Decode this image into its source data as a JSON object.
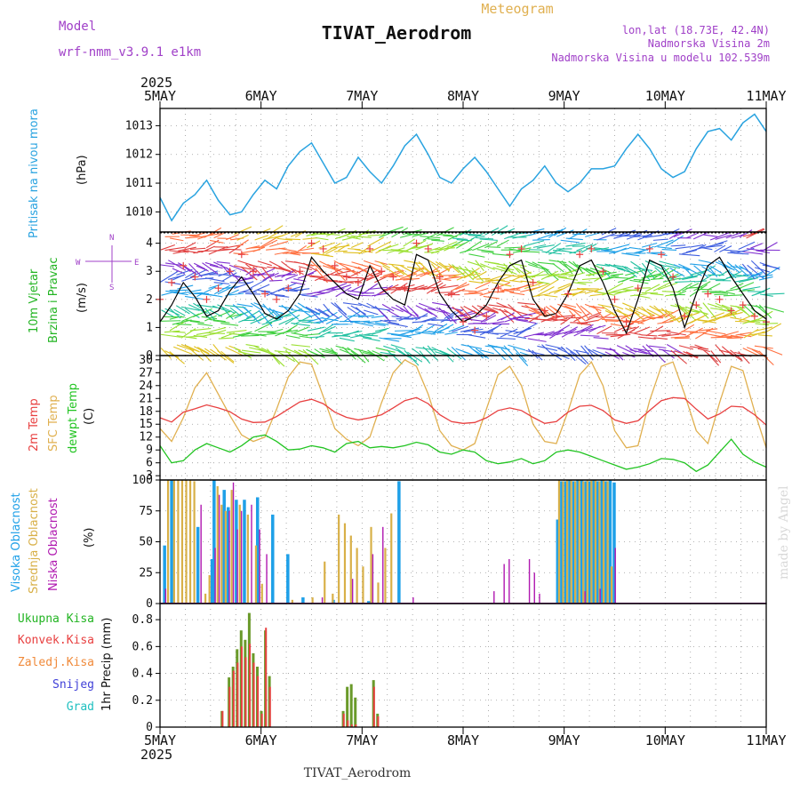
{
  "header": {
    "title": "TIVAT_Aerodrom",
    "subtitle": "Meteogram",
    "model_label": "Model",
    "model_name": "wrf-nmm_v3.9.1 e1km",
    "location": "lon,lat (18.73E, 42.4N)",
    "elevation": "Nadmorska Visina 2m",
    "model_elevation": "Nadmorska Visina u modelu 102.539m",
    "year": "2025",
    "credit": "made by Angel",
    "footer": "TIVAT_Aerodrom"
  },
  "colors": {
    "pressure": "#29a3e0",
    "temp2m": "#e84040",
    "sfc_temp": "#e0b050",
    "dewpt": "#22c422",
    "cloud_high": "#1ea0e8",
    "cloud_mid": "#d8b048",
    "cloud_low": "#b018b0",
    "precip_total": "#6a9a2a",
    "precip_conv": "#e84040",
    "wind_speed": "#000000",
    "gust": "#e84040",
    "violet_text": "#a040c8"
  },
  "chart_data": [
    {
      "type": "line",
      "title": "",
      "ylabel": "Pritisak na nivou mora",
      "unit": "(hPa)",
      "x_ticks": [
        "5MAY",
        "6MAY",
        "7MAY",
        "8MAY",
        "9MAY",
        "10MAY",
        "11MAY"
      ],
      "ylim": [
        1009.3,
        1013.6
      ],
      "y_ticks": [
        "1010",
        "1011",
        "1012",
        "1013"
      ],
      "series": [
        {
          "values": [
            1010.5,
            1009.7,
            1010.3,
            1010.6,
            1011.1,
            1010.4,
            1009.9,
            1010.0,
            1010.6,
            1011.1,
            1010.8,
            1011.6,
            1012.1,
            1012.4,
            1011.7,
            1011.0,
            1011.2,
            1011.9,
            1011.4,
            1011.0,
            1011.6,
            1012.3,
            1012.7,
            1012.0,
            1011.2,
            1011.0,
            1011.5,
            1011.9,
            1011.4,
            1010.8,
            1010.2,
            1010.8,
            1011.1,
            1011.6,
            1011.0,
            1010.7,
            1011.0,
            1011.5,
            1011.5,
            1011.6,
            1012.2,
            1012.7,
            1012.2,
            1011.5,
            1011.2,
            1011.4,
            1012.2,
            1012.8,
            1012.9,
            1012.5,
            1013.1,
            1013.4,
            1012.8
          ]
        }
      ]
    },
    {
      "type": "line",
      "title": "",
      "ylabel": "10m Vjetar Brzina i Pravac",
      "unit": "(m/s)",
      "ylim": [
        0,
        4.4
      ],
      "y_ticks": [
        "0",
        "1",
        "2",
        "3",
        "4"
      ],
      "compass": [
        "N",
        "E",
        "S",
        "W"
      ],
      "series": [
        {
          "values": [
            1.2,
            1.8,
            2.6,
            2.1,
            1.4,
            1.6,
            2.3,
            2.8,
            2.2,
            1.5,
            1.3,
            1.6,
            2.2,
            3.5,
            3.0,
            2.6,
            2.2,
            2.0,
            3.2,
            2.4,
            2.0,
            1.8,
            3.6,
            3.4,
            2.2,
            1.6,
            1.2,
            1.4,
            1.8,
            2.6,
            3.2,
            3.4,
            2.0,
            1.4,
            1.5,
            2.2,
            3.2,
            3.4,
            2.6,
            1.6,
            0.8,
            2.0,
            3.4,
            3.2,
            2.4,
            1.0,
            2.2,
            3.2,
            3.5,
            2.8,
            2.2,
            1.6,
            1.3
          ]
        },
        {
          "values": [
            2.0,
            2.6,
            3.2,
            2.8,
            2.0,
            2.4,
            3.0,
            3.6,
            3.0,
            2.2,
            2.0,
            2.4,
            3.0,
            4.0,
            3.8,
            3.2,
            2.8,
            2.6,
            3.8,
            3.0,
            2.8,
            2.4,
            4.0,
            3.8,
            2.8,
            2.2,
            1.2,
            0.9,
            1.4,
            2.4,
            3.6,
            3.8,
            2.6,
            1.6,
            1.4,
            2.2,
            3.6,
            3.8,
            3.0,
            2.0,
            1.2,
            2.4,
            3.8,
            3.6,
            2.8,
            1.4,
            1.8,
            2.2,
            2.0,
            1.6,
            1.8,
            1.4,
            1.2
          ]
        }
      ]
    },
    {
      "type": "line",
      "title": "",
      "ylabels": [
        "2m Temp",
        "SFC Temp",
        "dewpt Temp"
      ],
      "unit": "(C)",
      "ylim": [
        2,
        31
      ],
      "y_ticks": [
        "3",
        "6",
        "9",
        "12",
        "15",
        "18",
        "21",
        "24",
        "27",
        "30"
      ],
      "series": [
        {
          "values": [
            16.5,
            15.5,
            17.8,
            18.6,
            19.5,
            18.8,
            17.9,
            16.2,
            15.4,
            15.5,
            16.8,
            18.5,
            20.2,
            20.8,
            19.8,
            17.8,
            16.6,
            16.0,
            16.5,
            17.2,
            18.8,
            20.5,
            21.2,
            19.8,
            17.2,
            15.6,
            15.2,
            15.4,
            16.5,
            18.2,
            18.8,
            18.2,
            16.6,
            15.2,
            15.6,
            17.8,
            19.2,
            19.4,
            18.2,
            16.0,
            15.2,
            15.8,
            18.2,
            20.5,
            21.2,
            21.0,
            18.5,
            16.2,
            17.4,
            19.2,
            19.0,
            17.2,
            14.8
          ]
        },
        {
          "values": [
            14.0,
            11.0,
            16.5,
            23.5,
            27.0,
            22.0,
            17.0,
            12.5,
            11.0,
            12.0,
            18.5,
            26.0,
            29.5,
            29.0,
            21.5,
            14.0,
            11.5,
            10.0,
            12.0,
            20.0,
            27.0,
            30.0,
            28.5,
            22.0,
            13.5,
            10.0,
            9.0,
            10.5,
            18.5,
            26.5,
            28.5,
            24.0,
            15.0,
            11.0,
            10.5,
            18.0,
            26.5,
            29.5,
            24.0,
            13.5,
            9.5,
            10.0,
            20.5,
            28.5,
            29.5,
            22.0,
            13.5,
            10.5,
            20.0,
            28.5,
            27.5,
            18.0,
            9.5
          ]
        },
        {
          "values": [
            10.0,
            6.0,
            6.5,
            9.0,
            10.5,
            9.5,
            8.5,
            10.0,
            12.0,
            12.5,
            11.0,
            9.0,
            9.2,
            10.0,
            9.5,
            8.5,
            10.5,
            11.0,
            9.5,
            9.8,
            9.5,
            10.0,
            10.8,
            10.2,
            8.5,
            8.0,
            9.0,
            8.5,
            6.5,
            5.8,
            6.2,
            7.0,
            5.8,
            6.5,
            8.5,
            9.0,
            8.5,
            7.5,
            6.5,
            5.5,
            4.5,
            5.0,
            5.8,
            7.0,
            6.8,
            6.0,
            4.0,
            5.5,
            8.5,
            11.5,
            8.0,
            6.2,
            5.0
          ]
        }
      ]
    },
    {
      "type": "bar",
      "title": "",
      "ylabels": [
        "Visoka Oblacnost",
        "Srednja Oblacnost",
        "Niska Oblacnost"
      ],
      "unit": "(%)",
      "ylim": [
        0,
        100
      ],
      "y_ticks": [
        "0",
        "25",
        "50",
        "75",
        "100"
      ],
      "series": [
        {
          "t": [
            0.03,
            0.1,
            0.36,
            0.5,
            0.52,
            0.62,
            0.66,
            0.74,
            0.82,
            0.95,
            1.1,
            1.25,
            1.4,
            1.7,
            2.05,
            2.35,
            3.92,
            3.96,
            4.0,
            4.04,
            4.08,
            4.12,
            4.16,
            4.2,
            4.24,
            4.28,
            4.32,
            4.36,
            4.4,
            4.44,
            4.48
          ],
          "values": [
            47,
            100,
            62,
            36,
            100,
            92,
            78,
            84,
            84,
            86,
            72,
            40,
            5,
            3,
            2,
            99,
            68,
            99,
            99,
            100,
            99,
            100,
            100,
            99,
            99,
            100,
            99,
            100,
            99,
            100,
            98
          ]
        },
        {
          "t": [
            0.07,
            0.13,
            0.17,
            0.21,
            0.25,
            0.29,
            0.33,
            0.44,
            0.48,
            0.56,
            0.6,
            0.64,
            0.7,
            0.78,
            0.86,
            0.94,
            1.0,
            1.3,
            1.5,
            1.62,
            1.7,
            1.76,
            1.82,
            1.88,
            1.94,
            2.0,
            2.08,
            2.15,
            2.22,
            2.28,
            3.94,
            3.98,
            4.02,
            4.06,
            4.1,
            4.14,
            4.18,
            4.22,
            4.26,
            4.3,
            4.34,
            4.38,
            4.42,
            4.46
          ],
          "values": [
            100,
            100,
            100,
            100,
            100,
            100,
            99,
            8,
            23,
            95,
            80,
            75,
            92,
            80,
            72,
            47,
            16,
            3,
            5,
            34,
            8,
            72,
            65,
            55,
            45,
            30,
            62,
            17,
            45,
            73,
            100,
            99,
            100,
            100,
            99,
            100,
            99,
            100,
            100,
            100,
            99,
            100,
            99,
            30
          ]
        },
        {
          "t": [
            0.05,
            0.4,
            0.54,
            0.58,
            0.68,
            0.72,
            0.76,
            0.8,
            0.9,
            0.98,
            1.05,
            1.6,
            1.9,
            2.1,
            2.2,
            2.5,
            3.3,
            3.4,
            3.45,
            3.65,
            3.7,
            3.75,
            4.2,
            4.35,
            4.5
          ],
          "values": [
            12,
            80,
            45,
            88,
            75,
            98,
            60,
            75,
            80,
            60,
            40,
            5,
            20,
            40,
            62,
            5,
            10,
            32,
            36,
            36,
            25,
            8,
            10,
            12,
            45
          ]
        }
      ]
    },
    {
      "type": "bar",
      "title": "",
      "legend": [
        "Ukupna Kisa",
        "Konvek.Kisa",
        "Zaledj.Kisa",
        "Snijeg",
        "Grad"
      ],
      "ylabel": "1hr Precip (mm)",
      "ylim": [
        0,
        0.92
      ],
      "y_ticks": [
        "0",
        "0.2",
        "0.4",
        "0.6",
        "0.8"
      ],
      "x_ticks": [
        "5MAY",
        "6MAY",
        "7MAY",
        "8MAY",
        "9MAY",
        "10MAY",
        "11MAY"
      ],
      "series": [
        {
          "t": [
            0.6,
            0.67,
            0.71,
            0.75,
            0.79,
            0.83,
            0.87,
            0.91,
            0.95,
            0.99,
            1.03,
            1.07,
            1.8,
            1.84,
            1.88,
            1.92,
            2.1,
            2.14
          ],
          "values": [
            0.12,
            0.37,
            0.45,
            0.58,
            0.72,
            0.65,
            0.85,
            0.55,
            0.45,
            0.12,
            0.72,
            0.38,
            0.12,
            0.3,
            0.32,
            0.22,
            0.35,
            0.1
          ]
        },
        {
          "t": [
            0.61,
            0.68,
            0.72,
            0.76,
            0.8,
            0.84,
            0.88,
            0.92,
            0.96,
            1.0,
            1.04,
            1.08,
            1.81,
            1.85,
            1.89,
            1.93,
            2.11,
            2.15
          ],
          "values": [
            0.12,
            0.3,
            0.42,
            0.48,
            0.6,
            0.52,
            0.62,
            0.48,
            0.38,
            0.1,
            0.74,
            0.3,
            0.1,
            0.05,
            0.02,
            0.02,
            0.3,
            0.08
          ]
        }
      ]
    }
  ]
}
